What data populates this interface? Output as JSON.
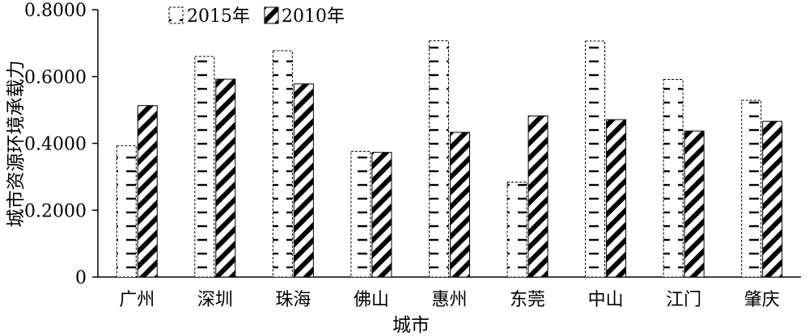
{
  "chart_data": {
    "type": "bar",
    "xlabel": "城市",
    "ylabel": "城市资源环境承载力",
    "ylim": [
      0,
      0.8
    ],
    "yticks": [
      "0",
      "0.2000",
      "0.4000",
      "0.6000",
      "0.8000"
    ],
    "categories": [
      "广州",
      "深圳",
      "珠海",
      "佛山",
      "惠州",
      "东莞",
      "中山",
      "江门",
      "肇庆"
    ],
    "series": [
      {
        "name": "2015年",
        "values": [
          0.393,
          0.66,
          0.677,
          0.376,
          0.707,
          0.284,
          0.706,
          0.591,
          0.529
        ]
      },
      {
        "name": "2010年",
        "values": [
          0.513,
          0.592,
          0.578,
          0.373,
          0.433,
          0.482,
          0.471,
          0.437,
          0.466
        ]
      }
    ],
    "legend_position": "top-left",
    "grid": false
  }
}
